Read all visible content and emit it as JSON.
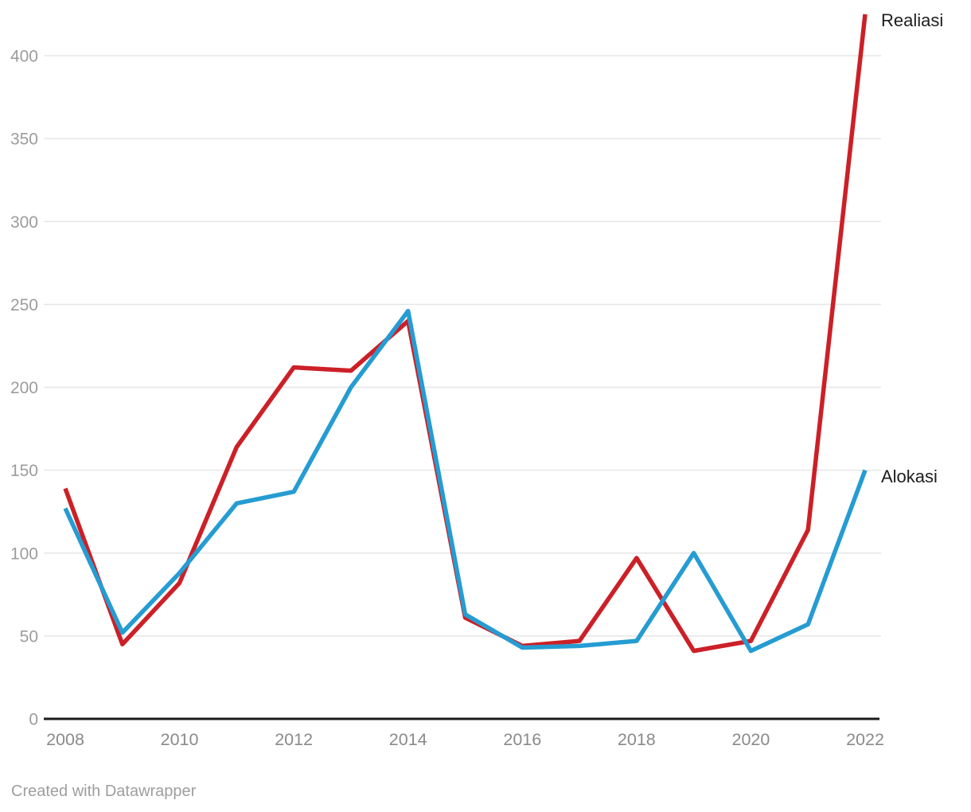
{
  "chart_data": {
    "type": "line",
    "title": "",
    "xlabel": "",
    "ylabel": "",
    "x": [
      2008,
      2009,
      2010,
      2011,
      2012,
      2013,
      2014,
      2015,
      2016,
      2017,
      2018,
      2019,
      2020,
      2021,
      2022
    ],
    "series": [
      {
        "name": "Realiasi",
        "color": "#cc2027",
        "values": [
          139,
          45,
          82,
          164,
          212,
          210,
          240,
          61,
          44,
          47,
          97,
          41,
          47,
          114,
          425
        ]
      },
      {
        "name": "Alokasi",
        "color": "#259cd2",
        "values": [
          127,
          52,
          88,
          130,
          137,
          200,
          246,
          63,
          43,
          44,
          47,
          100,
          41,
          57,
          150
        ]
      }
    ],
    "ylim": [
      0,
      400
    ],
    "y_ticks": [
      0,
      50,
      100,
      150,
      200,
      250,
      300,
      350,
      400
    ],
    "x_ticks": [
      2008,
      2010,
      2012,
      2014,
      2016,
      2018,
      2020,
      2022
    ],
    "grid": "horizontal",
    "legend_position": "direct-labels-right"
  },
  "colors": {
    "background": "#ffffff",
    "grid_line": "#e6e6e6",
    "axis_line": "#1a1a1a",
    "y_tick_label": "#9c9c9c",
    "x_tick_label": "#8a8a8a",
    "series_label": "#1d1d1d",
    "footer_text": "#9e9e9e"
  },
  "footer": {
    "attribution": "Created with Datawrapper"
  }
}
